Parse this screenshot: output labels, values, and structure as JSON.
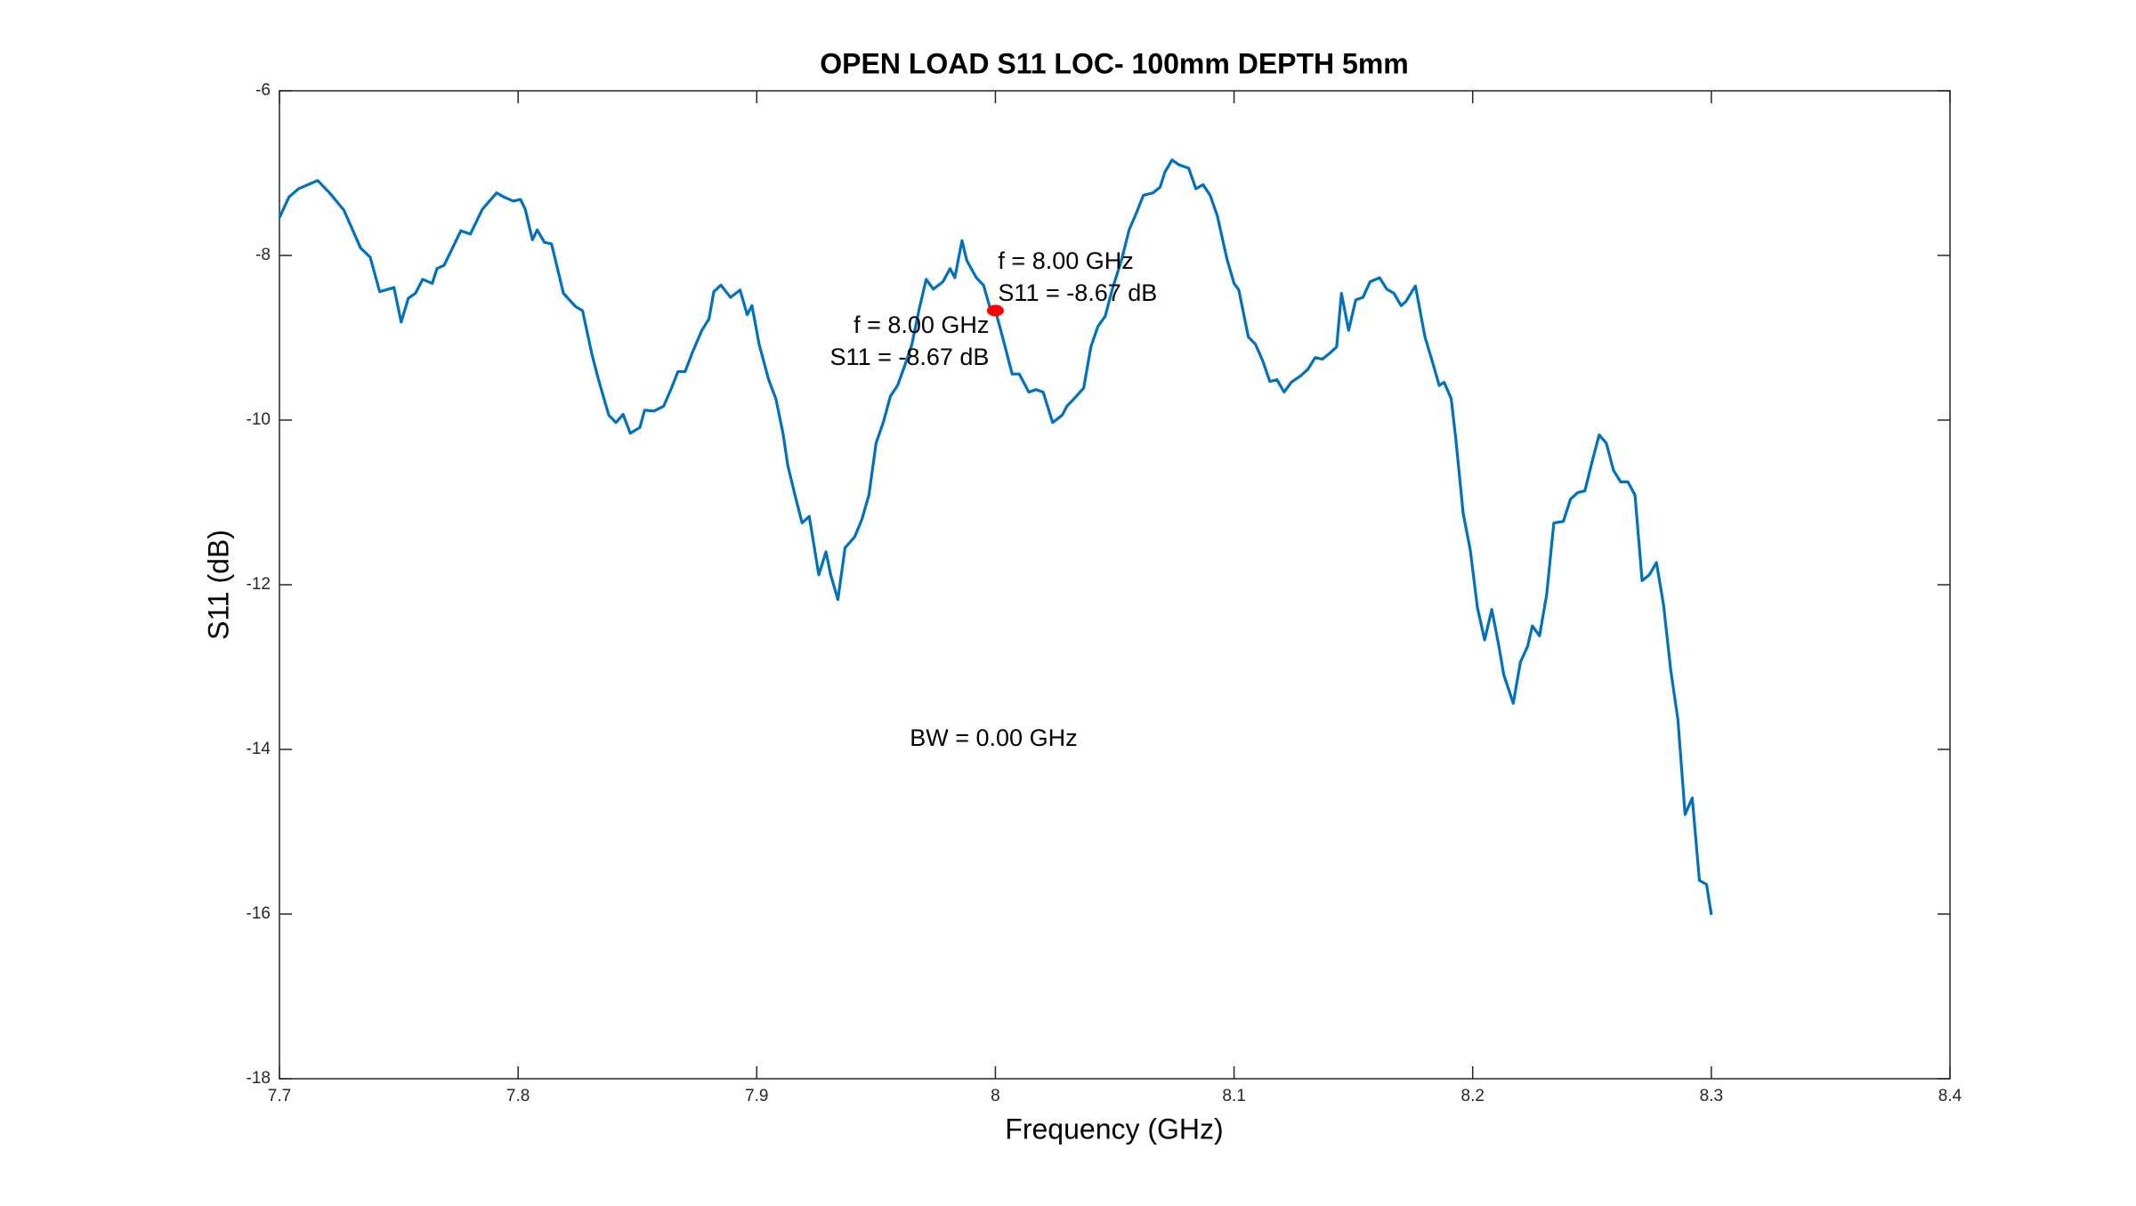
{
  "chart_data": {
    "type": "line",
    "title": "OPEN LOAD S11 LOC- 100mm DEPTH 5mm",
    "x_label": "Frequency (GHz)",
    "y_label": "S11 (dB)",
    "xlim": [
      7.7,
      8.4
    ],
    "ylim": [
      -18,
      -6
    ],
    "xticks": [
      7.7,
      7.8,
      7.9,
      8,
      8.1,
      8.2,
      8.3,
      8.4
    ],
    "yticks": [
      -18,
      -16,
      -14,
      -12,
      -10,
      -8,
      -6
    ],
    "x": [
      7.7,
      7.704,
      7.708,
      7.716,
      7.721,
      7.727,
      7.734,
      7.738,
      7.742,
      7.748,
      7.751,
      7.754,
      7.757,
      7.76,
      7.764,
      7.766,
      7.769,
      7.772,
      7.776,
      7.78,
      7.785,
      7.791,
      7.794,
      7.798,
      7.801,
      7.803,
      7.806,
      7.808,
      7.811,
      7.814,
      7.819,
      7.824,
      7.827,
      7.831,
      7.834,
      7.838,
      7.841,
      7.844,
      7.847,
      7.851,
      7.853,
      7.857,
      7.861,
      7.864,
      7.867,
      7.87,
      7.873,
      7.877,
      7.88,
      7.882,
      7.885,
      7.889,
      7.893,
      7.896,
      7.898,
      7.901,
      7.905,
      7.908,
      7.911,
      7.913,
      7.916,
      7.919,
      7.922,
      7.926,
      7.929,
      7.931,
      7.934,
      7.937,
      7.941,
      7.944,
      7.947,
      7.95,
      7.953,
      7.956,
      7.959,
      7.962,
      7.965,
      7.968,
      7.971,
      7.974,
      7.978,
      7.981,
      7.983,
      7.986,
      7.988,
      7.992,
      7.995,
      7.998,
      8.0,
      8.003,
      8.007,
      8.01,
      8.014,
      8.017,
      8.02,
      8.024,
      8.028,
      8.03,
      8.033,
      8.037,
      8.04,
      8.043,
      8.046,
      8.049,
      8.053,
      8.056,
      8.059,
      8.062,
      8.066,
      8.069,
      8.071,
      8.074,
      8.077,
      8.081,
      8.084,
      8.087,
      8.09,
      8.093,
      8.097,
      8.1,
      8.102,
      8.106,
      8.109,
      8.112,
      8.115,
      8.118,
      8.121,
      8.124,
      8.128,
      8.131,
      8.134,
      8.137,
      8.14,
      8.143,
      8.145,
      8.148,
      8.151,
      8.154,
      8.157,
      8.161,
      8.164,
      8.167,
      8.17,
      8.172,
      8.176,
      8.18,
      8.183,
      8.186,
      8.188,
      8.191,
      8.193,
      8.196,
      8.199,
      8.202,
      8.205,
      8.208,
      8.211,
      8.213,
      8.217,
      8.22,
      8.223,
      8.225,
      8.228,
      8.231,
      8.234,
      8.238,
      8.241,
      8.244,
      8.247,
      8.25,
      8.253,
      8.256,
      8.259,
      8.262,
      8.265,
      8.268,
      8.271,
      8.274,
      8.277,
      8.28,
      8.283,
      8.286,
      8.289,
      8.292,
      8.295,
      8.298,
      8.3
    ],
    "series": [
      {
        "color": "#0072bd",
        "values": [
          -7.54,
          -7.29,
          -7.19,
          -7.09,
          -7.24,
          -7.45,
          -7.91,
          -8.02,
          -8.44,
          -8.39,
          -8.81,
          -8.52,
          -8.46,
          -8.29,
          -8.34,
          -8.16,
          -8.12,
          -7.94,
          -7.7,
          -7.74,
          -7.44,
          -7.24,
          -7.29,
          -7.34,
          -7.32,
          -7.44,
          -7.81,
          -7.69,
          -7.84,
          -7.86,
          -8.46,
          -8.62,
          -8.67,
          -9.21,
          -9.54,
          -9.94,
          -10.03,
          -9.93,
          -10.16,
          -10.09,
          -9.88,
          -9.89,
          -9.83,
          -9.63,
          -9.41,
          -9.41,
          -9.18,
          -8.91,
          -8.77,
          -8.44,
          -8.36,
          -8.51,
          -8.42,
          -8.72,
          -8.61,
          -9.08,
          -9.51,
          -9.74,
          -10.16,
          -10.55,
          -10.91,
          -11.25,
          -11.17,
          -11.88,
          -11.6,
          -11.88,
          -12.18,
          -11.55,
          -11.42,
          -11.21,
          -10.91,
          -10.28,
          -10.03,
          -9.71,
          -9.58,
          -9.34,
          -9.08,
          -8.66,
          -8.29,
          -8.41,
          -8.32,
          -8.16,
          -8.27,
          -7.82,
          -8.06,
          -8.27,
          -8.36,
          -8.66,
          -8.67,
          -8.99,
          -9.44,
          -9.44,
          -9.66,
          -9.63,
          -9.66,
          -10.03,
          -9.94,
          -9.83,
          -9.74,
          -9.61,
          -9.11,
          -8.86,
          -8.74,
          -8.41,
          -8.04,
          -7.69,
          -7.49,
          -7.27,
          -7.24,
          -7.17,
          -6.99,
          -6.84,
          -6.9,
          -6.94,
          -7.19,
          -7.14,
          -7.27,
          -7.52,
          -8.04,
          -8.34,
          -8.42,
          -8.99,
          -9.08,
          -9.28,
          -9.53,
          -9.51,
          -9.66,
          -9.54,
          -9.46,
          -9.38,
          -9.24,
          -9.26,
          -9.19,
          -9.11,
          -8.46,
          -8.91,
          -8.54,
          -8.51,
          -8.32,
          -8.27,
          -8.41,
          -8.46,
          -8.61,
          -8.56,
          -8.37,
          -8.99,
          -9.28,
          -9.58,
          -9.54,
          -9.74,
          -10.25,
          -11.13,
          -11.58,
          -12.28,
          -12.67,
          -12.3,
          -12.75,
          -13.09,
          -13.44,
          -12.94,
          -12.75,
          -12.5,
          -12.62,
          -12.12,
          -11.25,
          -11.23,
          -10.96,
          -10.88,
          -10.86,
          -10.51,
          -10.18,
          -10.28,
          -10.61,
          -10.75,
          -10.75,
          -10.91,
          -11.95,
          -11.88,
          -11.73,
          -12.25,
          -13.04,
          -13.64,
          -14.79,
          -14.59,
          -15.59,
          -15.64,
          -16.01
        ]
      }
    ],
    "marker": {
      "x": 8.0,
      "y": -8.67,
      "color": "#ff0000"
    },
    "annotations": [
      "f = 8.00 GHz",
      "S11 = -8.67 dB",
      "f = 8.00 GHz",
      "S11 = -8.67 dB",
      "BW = 0.00 GHz"
    ]
  }
}
